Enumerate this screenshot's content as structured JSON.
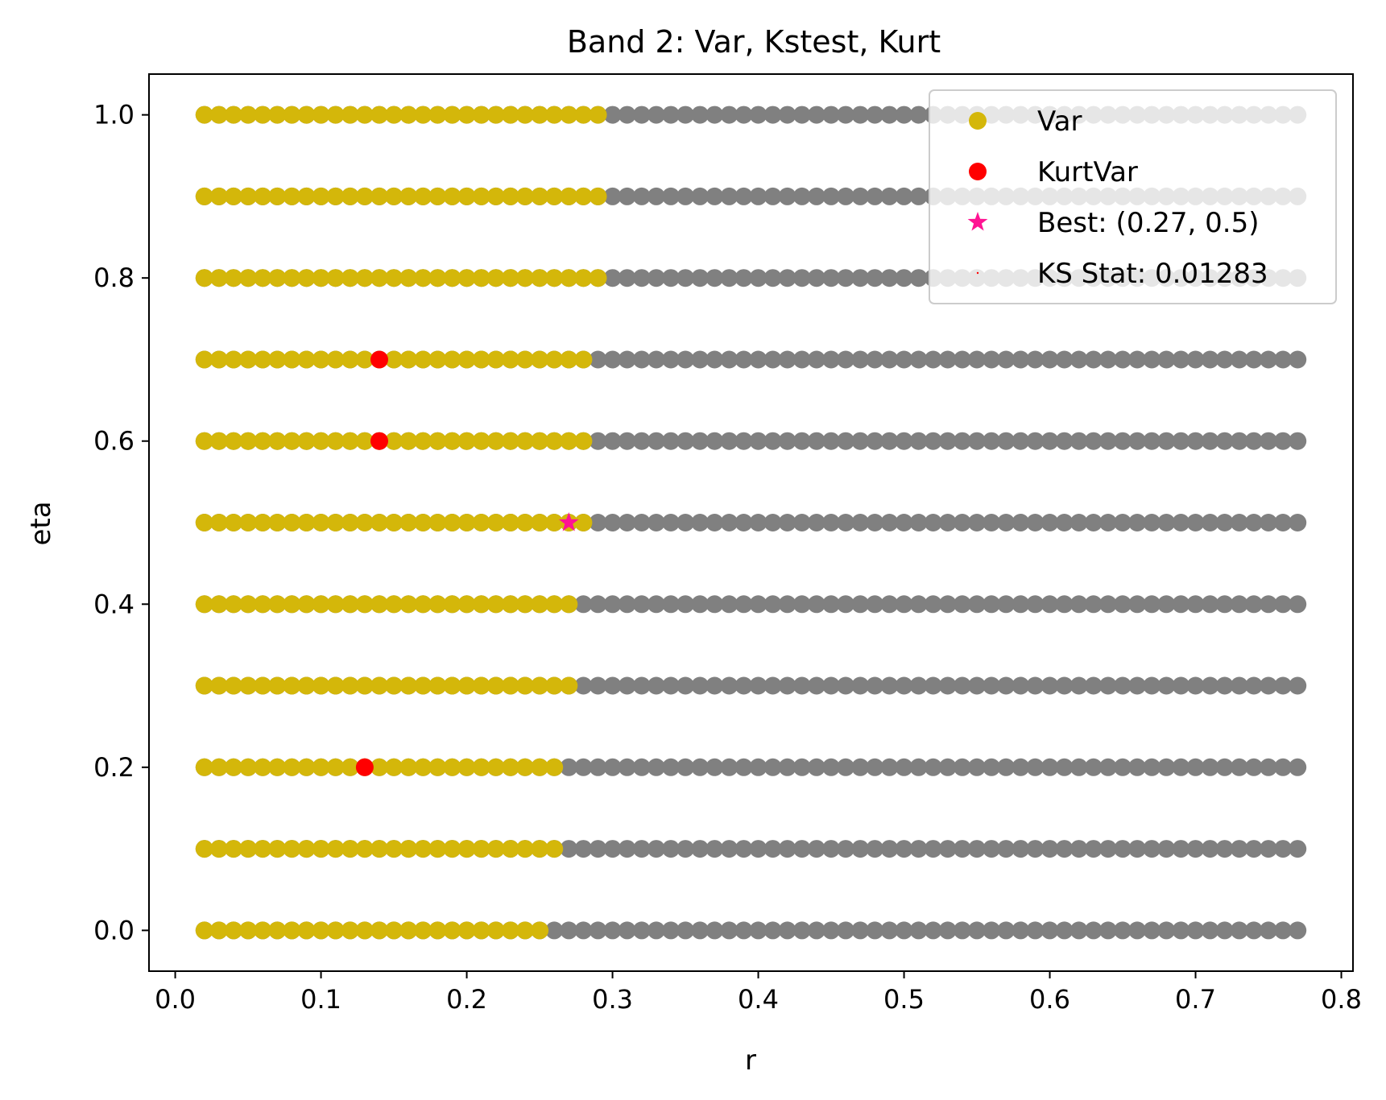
{
  "chart_data": {
    "type": "scatter",
    "title": "Band 2: Var, Kstest, Kurt",
    "xlabel": "r",
    "ylabel": "eta",
    "xlim": [
      -0.018,
      0.808
    ],
    "ylim": [
      -0.05,
      1.05
    ],
    "x_ticks": [
      "0.0",
      "0.1",
      "0.2",
      "0.3",
      "0.4",
      "0.5",
      "0.6",
      "0.7",
      "0.8"
    ],
    "x_tick_values": [
      0,
      0.1,
      0.2,
      0.3,
      0.4,
      0.5,
      0.6,
      0.7,
      0.8
    ],
    "y_ticks": [
      "0.0",
      "0.2",
      "0.4",
      "0.6",
      "0.8",
      "1.0"
    ],
    "y_tick_values": [
      0,
      0.2,
      0.4,
      0.6,
      0.8,
      1.0
    ],
    "grid": false,
    "legend_position": "top-right",
    "r_grid": {
      "start": 0.02,
      "end": 0.77,
      "step": 0.01
    },
    "eta_values": [
      0.0,
      0.1,
      0.2,
      0.3,
      0.4,
      0.5,
      0.6,
      0.7,
      0.8,
      0.9,
      1.0
    ],
    "grid_points_color": "#808080",
    "var_max_r_by_eta": [
      {
        "eta": 0.0,
        "r_max": 0.25
      },
      {
        "eta": 0.1,
        "r_max": 0.26
      },
      {
        "eta": 0.2,
        "r_max": 0.26
      },
      {
        "eta": 0.3,
        "r_max": 0.27
      },
      {
        "eta": 0.4,
        "r_max": 0.27
      },
      {
        "eta": 0.5,
        "r_max": 0.28
      },
      {
        "eta": 0.6,
        "r_max": 0.28
      },
      {
        "eta": 0.7,
        "r_max": 0.28
      },
      {
        "eta": 0.8,
        "r_max": 0.29
      },
      {
        "eta": 0.9,
        "r_max": 0.29
      },
      {
        "eta": 1.0,
        "r_max": 0.29
      }
    ],
    "series": [
      {
        "name": "Var",
        "color": "#d4b70a",
        "marker": "circle"
      },
      {
        "name": "KurtVar",
        "color": "#ff0000",
        "marker": "circle",
        "points": [
          [
            0.14,
            0.7
          ],
          [
            0.14,
            0.6
          ],
          [
            0.13,
            0.2
          ]
        ]
      },
      {
        "name": "Best: (0.27, 0.5)",
        "color": "#ff1493",
        "marker": "star",
        "points": [
          [
            0.27,
            0.5
          ]
        ]
      },
      {
        "name": "KS Stat: 0.01283",
        "color": "#ff0000",
        "marker": "point"
      }
    ]
  }
}
